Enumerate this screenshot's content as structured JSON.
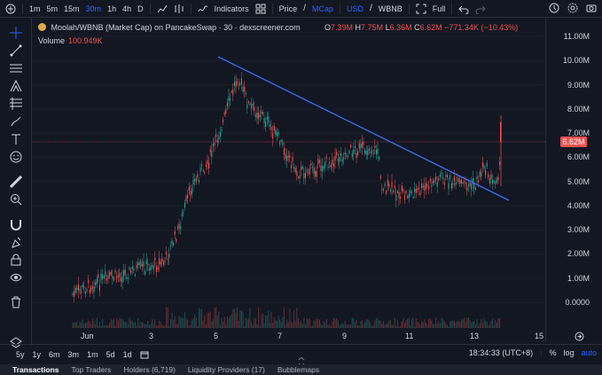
{
  "toolbar": {
    "intervals": [
      "1m",
      "5m",
      "15m",
      "30m",
      "1h",
      "4h",
      "D"
    ],
    "active_interval": "30m",
    "indicators_label": "Indicators",
    "price_label": "Price",
    "mcap_label": "MCap",
    "usd_label": "USD",
    "wbnb_label": "WBNB",
    "full_label": "Full"
  },
  "legend": {
    "title": "Moolah/WBNB (Market Cap) on PancakeSwap · 30 · dexscreener.com",
    "o_key": "O",
    "o_val": "7.39M",
    "h_key": "H",
    "h_val": "7.75M",
    "l_key": "L",
    "l_val": "6.36M",
    "c_key": "C",
    "c_val": "6.62M",
    "change": "−771.34K (−10.43%)",
    "volume_label": "Volume",
    "volume_value": "100.949K"
  },
  "y_axis": {
    "ticks": [
      "11.00M",
      "10.00M",
      "9.00M",
      "8.00M",
      "7.00M",
      "6.00M",
      "5.00M",
      "4.00M",
      "3.00M",
      "2.00M",
      "1.00M",
      "0.0000"
    ],
    "last_price": "6.62M"
  },
  "x_axis": {
    "ticks": [
      "Jun",
      "3",
      "5",
      "7",
      "9",
      "11",
      "13",
      "15"
    ]
  },
  "bottom": {
    "ranges": [
      "5y",
      "1y",
      "6m",
      "3m",
      "1m",
      "5d",
      "1d"
    ],
    "time": "18:34:33 (UTC+8)",
    "pct": "%",
    "log": "log",
    "auto": "auto"
  },
  "tabs": [
    "Transactions",
    "Top Traders",
    "Holders (6,719)",
    "Liquidity Providers (17)",
    "Bubblemaps"
  ],
  "colors": {
    "up": "#26a69a",
    "down": "#ef5350",
    "trendline": "#3d6eff",
    "bg": "#131722",
    "accent": "#2962ff"
  }
}
